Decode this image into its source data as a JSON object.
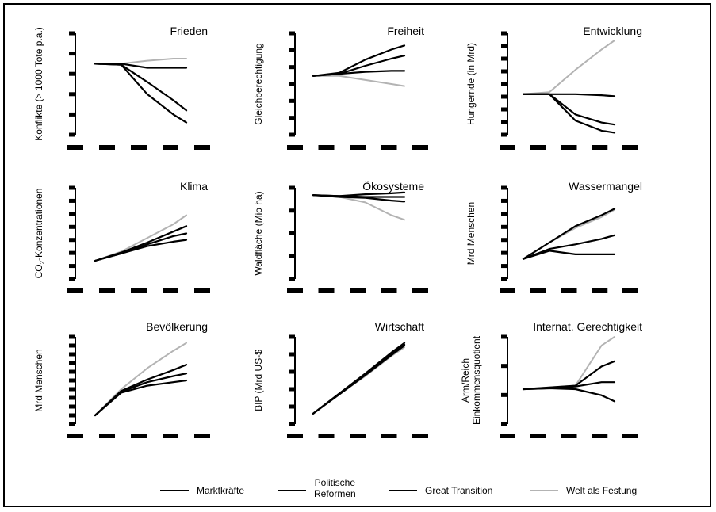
{
  "colors": {
    "black": "#000000",
    "gray": "#b3b3b3"
  },
  "legend": {
    "markt": "Marktkräfte",
    "politik_1": "Politische",
    "politik_2": "Reformen",
    "great": "Great Transition",
    "festung": "Welt als Festung"
  },
  "chart_data": [
    {
      "type": "line",
      "title": "Frieden",
      "ylabel": "Konflikte (> 1000 Tote p.a.)",
      "yticks": 6,
      "x": [
        0,
        1,
        2,
        3,
        3.5
      ],
      "series": [
        {
          "name": "Welt als Festung",
          "color": "gray",
          "values": [
            0.7,
            0.7,
            0.73,
            0.75,
            0.75
          ]
        },
        {
          "name": "Marktkräfte",
          "color": "black",
          "values": [
            0.7,
            0.7,
            0.66,
            0.66,
            0.66
          ]
        },
        {
          "name": "Politische Reformen",
          "color": "black",
          "values": [
            0.7,
            0.69,
            0.52,
            0.34,
            0.24
          ]
        },
        {
          "name": "Great Transition",
          "color": "black",
          "values": [
            0.7,
            0.69,
            0.4,
            0.2,
            0.12
          ]
        }
      ]
    },
    {
      "type": "line",
      "title": "Freiheit",
      "ylabel": "Gleichberechtigung",
      "yticks": 7,
      "x": [
        0,
        1,
        2,
        3,
        3.5
      ],
      "series": [
        {
          "name": "Welt als Festung",
          "color": "gray",
          "values": [
            0.58,
            0.58,
            0.54,
            0.5,
            0.48
          ]
        },
        {
          "name": "Marktkräfte",
          "color": "black",
          "values": [
            0.58,
            0.6,
            0.62,
            0.63,
            0.63
          ]
        },
        {
          "name": "Politische Reformen",
          "color": "black",
          "values": [
            0.58,
            0.6,
            0.68,
            0.75,
            0.78
          ]
        },
        {
          "name": "Great Transition",
          "color": "black",
          "values": [
            0.58,
            0.61,
            0.74,
            0.84,
            0.88
          ]
        }
      ]
    },
    {
      "type": "line",
      "title": "Entwicklung",
      "ylabel": "Hungernde (in Mrd)",
      "yticks": 9,
      "x": [
        0,
        1,
        2,
        3,
        3.5
      ],
      "series": [
        {
          "name": "Welt als Festung",
          "color": "gray",
          "values": [
            0.4,
            0.42,
            0.64,
            0.84,
            0.93
          ]
        },
        {
          "name": "Marktkräfte",
          "color": "black",
          "values": [
            0.4,
            0.4,
            0.4,
            0.39,
            0.38
          ]
        },
        {
          "name": "Politische Reformen",
          "color": "black",
          "values": [
            0.4,
            0.4,
            0.2,
            0.12,
            0.1
          ]
        },
        {
          "name": "Great Transition",
          "color": "black",
          "values": [
            0.4,
            0.4,
            0.14,
            0.04,
            0.02
          ]
        }
      ]
    },
    {
      "type": "line",
      "title": "Klima",
      "ylabel": "CO2-Konzentrationen",
      "yticks": 8,
      "x": [
        0,
        1,
        2,
        3,
        3.5
      ],
      "series": [
        {
          "name": "Welt als Festung",
          "color": "gray",
          "values": [
            0.2,
            0.3,
            0.45,
            0.6,
            0.7
          ]
        },
        {
          "name": "Marktkräfte",
          "color": "black",
          "values": [
            0.2,
            0.29,
            0.4,
            0.52,
            0.58
          ]
        },
        {
          "name": "Politische Reformen",
          "color": "black",
          "values": [
            0.2,
            0.28,
            0.38,
            0.47,
            0.5
          ]
        },
        {
          "name": "Great Transition",
          "color": "black",
          "values": [
            0.2,
            0.28,
            0.36,
            0.41,
            0.43
          ]
        }
      ]
    },
    {
      "type": "line",
      "title": "Ökosysteme",
      "ylabel": "Waldfläche (Mio ha)",
      "yticks": 5,
      "x": [
        0,
        1,
        2,
        3,
        3.5
      ],
      "series": [
        {
          "name": "Welt als Festung",
          "color": "gray",
          "values": [
            0.92,
            0.9,
            0.84,
            0.7,
            0.65
          ]
        },
        {
          "name": "Marktkräfte",
          "color": "black",
          "values": [
            0.92,
            0.9,
            0.89,
            0.86,
            0.85
          ]
        },
        {
          "name": "Politische Reformen",
          "color": "black",
          "values": [
            0.92,
            0.91,
            0.9,
            0.9,
            0.9
          ]
        },
        {
          "name": "Great Transition",
          "color": "black",
          "values": [
            0.92,
            0.91,
            0.93,
            0.94,
            0.95
          ]
        }
      ]
    },
    {
      "type": "line",
      "title": "Wassermangel",
      "ylabel": "Mrd Menschen",
      "yticks": 8,
      "x": [
        0,
        1,
        2,
        3,
        3.5
      ],
      "series": [
        {
          "name": "Welt als Festung",
          "color": "gray",
          "values": [
            0.22,
            0.4,
            0.56,
            0.68,
            0.76
          ]
        },
        {
          "name": "Marktkräfte",
          "color": "black",
          "values": [
            0.22,
            0.4,
            0.58,
            0.7,
            0.77
          ]
        },
        {
          "name": "Politische Reformen",
          "color": "black",
          "values": [
            0.22,
            0.33,
            0.38,
            0.44,
            0.48
          ]
        },
        {
          "name": "Great Transition",
          "color": "black",
          "values": [
            0.22,
            0.31,
            0.27,
            0.27,
            0.27
          ]
        }
      ]
    },
    {
      "type": "line",
      "title": "Bevölkerung",
      "ylabel": "Mrd Menschen",
      "yticks": 11,
      "x": [
        0,
        1,
        2,
        3,
        3.5
      ],
      "series": [
        {
          "name": "Welt als Festung",
          "color": "gray",
          "values": [
            0.1,
            0.4,
            0.64,
            0.84,
            0.93
          ]
        },
        {
          "name": "Marktkräfte",
          "color": "black",
          "values": [
            0.1,
            0.38,
            0.51,
            0.62,
            0.68
          ]
        },
        {
          "name": "Politische Reformen",
          "color": "black",
          "values": [
            0.1,
            0.37,
            0.48,
            0.55,
            0.58
          ]
        },
        {
          "name": "Great Transition",
          "color": "black",
          "values": [
            0.1,
            0.36,
            0.44,
            0.48,
            0.5
          ]
        }
      ]
    },
    {
      "type": "line",
      "title": "Wirtschaft",
      "ylabel": "BIP (Mrd US-$",
      "yticks": 6,
      "x": [
        0,
        1,
        2,
        3,
        3.5
      ],
      "series": [
        {
          "name": "Welt als Festung",
          "color": "gray",
          "values": [
            0.12,
            0.34,
            0.55,
            0.78,
            0.88
          ]
        },
        {
          "name": "Marktkräfte",
          "color": "black",
          "values": [
            0.12,
            0.35,
            0.58,
            0.82,
            0.93
          ]
        },
        {
          "name": "Politische Reformen",
          "color": "black",
          "values": [
            0.12,
            0.35,
            0.57,
            0.8,
            0.91
          ]
        },
        {
          "name": "Great Transition",
          "color": "black",
          "values": [
            0.12,
            0.34,
            0.56,
            0.79,
            0.9
          ]
        }
      ]
    },
    {
      "type": "line",
      "title": "Internat. Gerechtigkeit",
      "ylabel": "Arm/Reich Einkommensquotient",
      "ylabel_lines": [
        "Arm/Reich",
        "Einkommensquotient"
      ],
      "yticks": 4,
      "x": [
        0,
        1,
        2,
        3,
        3.5
      ],
      "series": [
        {
          "name": "Welt als Festung",
          "color": "gray",
          "values": [
            0.4,
            0.42,
            0.44,
            0.9,
            1.0
          ]
        },
        {
          "name": "Marktkräfte",
          "color": "black",
          "values": [
            0.4,
            0.42,
            0.44,
            0.66,
            0.72
          ]
        },
        {
          "name": "Politische Reformen",
          "color": "black",
          "values": [
            0.4,
            0.41,
            0.43,
            0.48,
            0.48
          ]
        },
        {
          "name": "Great Transition",
          "color": "black",
          "values": [
            0.4,
            0.41,
            0.4,
            0.33,
            0.26
          ]
        }
      ]
    }
  ]
}
